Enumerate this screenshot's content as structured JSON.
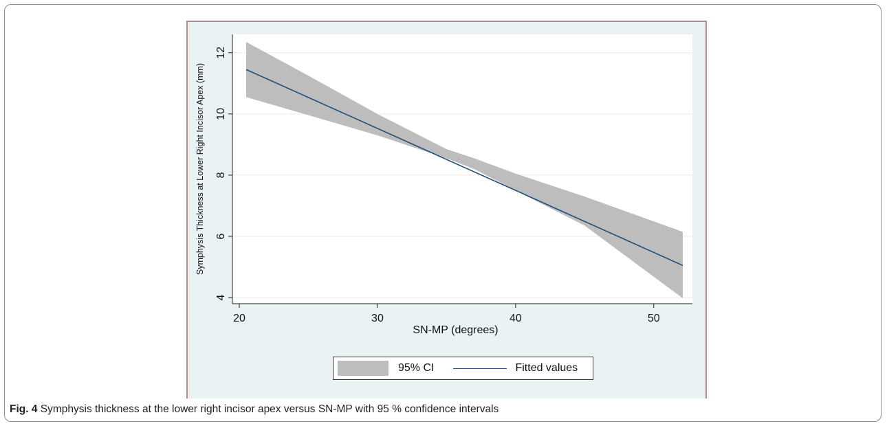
{
  "caption": {
    "label": "Fig. 4",
    "text": "Symphysis thickness at the lower right incisor apex versus SN-MP with 95 % confidence intervals"
  },
  "legend": {
    "ci_label": "95% CI",
    "fit_label": "Fitted values"
  },
  "colors": {
    "panel_background": "#eaf2f3",
    "plot_background": "#ffffff",
    "ci_band": "#bdbdbd",
    "fitted_line": "#1f4e79",
    "gridline": "#e6ecef"
  },
  "chart_data": {
    "type": "line",
    "xlabel": "SN-MP (degrees)",
    "ylabel": "Symphysis Thickness at Lower Right Incisor Apex (mm)",
    "xlim": [
      19.5,
      52.8
    ],
    "ylim": [
      3.8,
      12.6
    ],
    "x_ticks": [
      20,
      30,
      40,
      50
    ],
    "y_ticks": [
      4,
      6,
      8,
      10,
      12
    ],
    "grid": "horizontal",
    "legend_position": "bottom",
    "series": [
      {
        "name": "Fitted values",
        "x": [
          20.5,
          52.1
        ],
        "y": [
          11.45,
          5.05
        ]
      },
      {
        "name": "95% CI",
        "x": [
          20.5,
          25,
          30,
          35,
          37,
          40,
          45,
          52.1
        ],
        "lower": [
          10.55,
          9.96,
          9.3,
          8.55,
          8.2,
          7.5,
          6.35,
          3.98
        ],
        "upper": [
          12.35,
          11.25,
          10.0,
          8.85,
          8.55,
          8.05,
          7.3,
          6.15
        ]
      }
    ]
  }
}
